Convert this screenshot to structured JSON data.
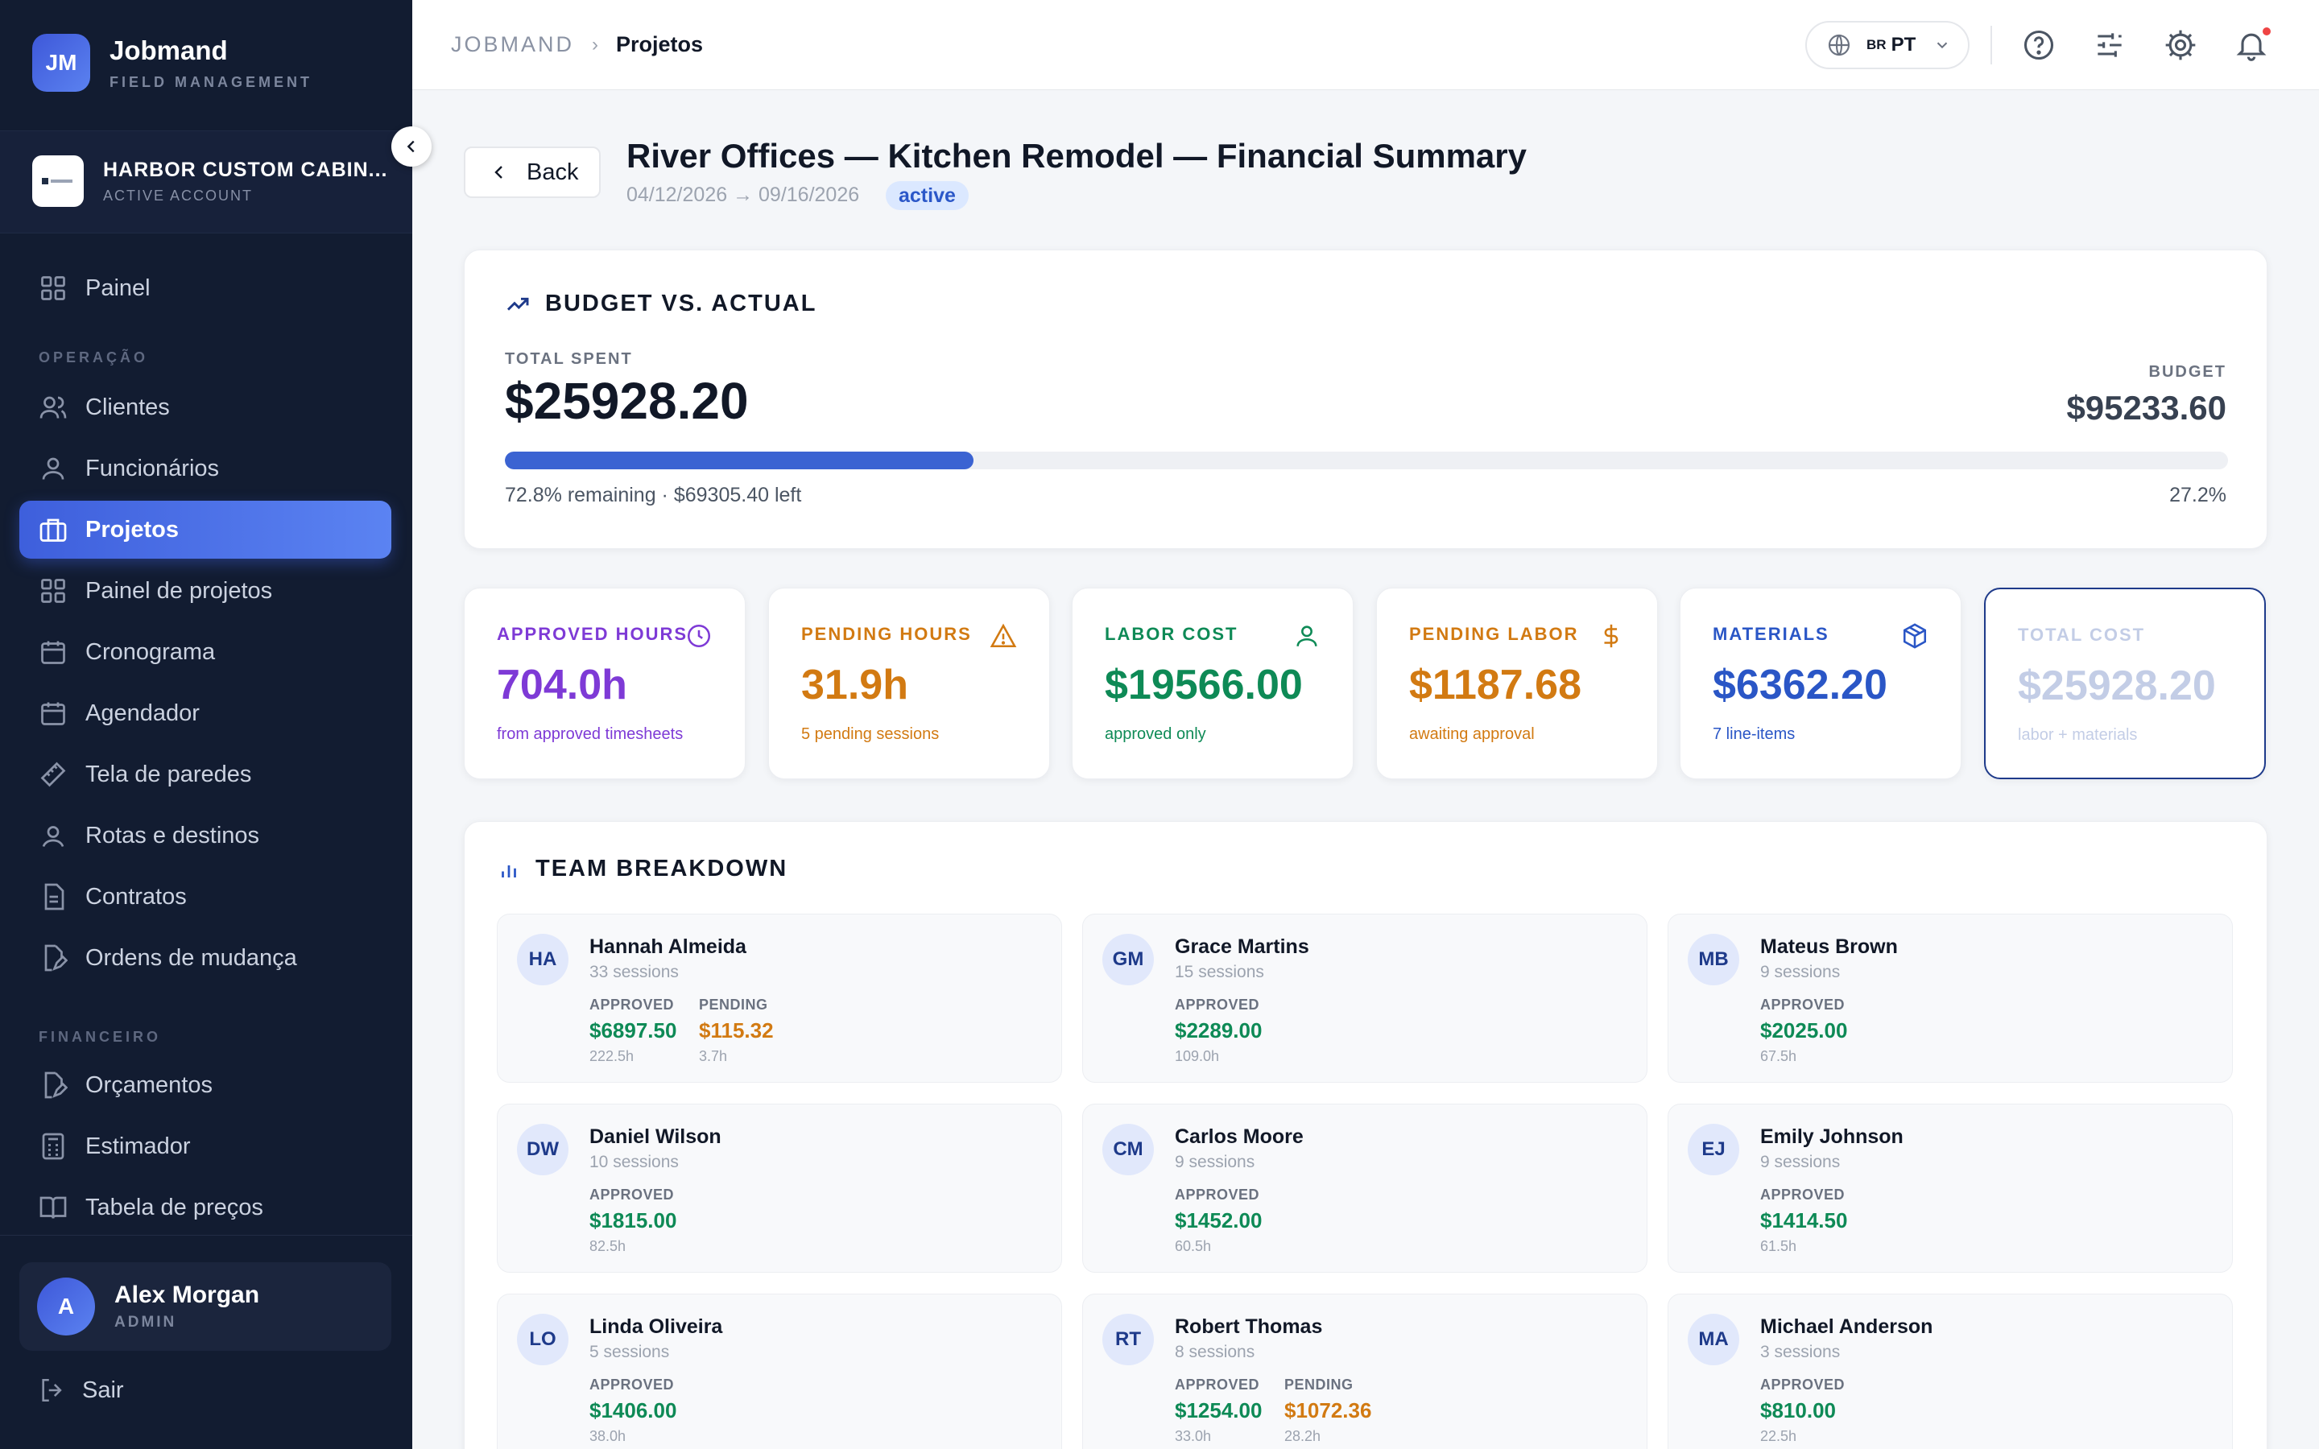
{
  "app": {
    "logo_initials": "JM",
    "name": "Jobmand",
    "subtitle": "FIELD MANAGEMENT"
  },
  "account": {
    "name": "HARBOR CUSTOM CABIN...",
    "status": "ACTIVE ACCOUNT"
  },
  "nav": {
    "top": [
      {
        "label": "Painel",
        "icon": "grid-icon"
      }
    ],
    "operacao_label": "OPERAÇÃO",
    "operacao": [
      {
        "label": "Clientes",
        "icon": "users-icon"
      },
      {
        "label": "Funcionários",
        "icon": "user-icon"
      },
      {
        "label": "Projetos",
        "icon": "briefcase-icon",
        "active": true
      },
      {
        "label": "Painel de projetos",
        "icon": "grid-icon"
      },
      {
        "label": "Cronograma",
        "icon": "calendar-icon"
      },
      {
        "label": "Agendador",
        "icon": "calendar-icon"
      },
      {
        "label": "Tela de paredes",
        "icon": "ruler-icon"
      },
      {
        "label": "Rotas e destinos",
        "icon": "map-pin-icon"
      },
      {
        "label": "Contratos",
        "icon": "file-icon"
      },
      {
        "label": "Ordens de mudança",
        "icon": "file-edit-icon"
      }
    ],
    "financeiro_label": "FINANCEIRO",
    "financeiro": [
      {
        "label": "Orçamentos",
        "icon": "file-edit-icon"
      },
      {
        "label": "Estimador",
        "icon": "calculator-icon"
      },
      {
        "label": "Tabela de preços",
        "icon": "book-icon"
      }
    ]
  },
  "user": {
    "initial": "A",
    "name": "Alex Morgan",
    "role": "ADMIN"
  },
  "logout_label": "Sair",
  "breadcrumb": {
    "root": "JOBMAND",
    "current": "Projetos"
  },
  "language": {
    "flag": "BR",
    "code": "PT"
  },
  "header": {
    "back_label": "Back",
    "title": "River Offices — Kitchen Remodel — Financial Summary",
    "dates": "04/12/2026 → 09/16/2026",
    "status": "active"
  },
  "budget": {
    "title": "BUDGET VS. ACTUAL",
    "total_spent_label": "TOTAL SPENT",
    "total_spent": "$25928.20",
    "budget_label": "BUDGET",
    "budget": "$95233.60",
    "progress_fraction": 0.272,
    "remaining_text": "72.8% remaining · $69305.40 left",
    "percent_used": "27.2%"
  },
  "stats": [
    {
      "label": "APPROVED HOURS",
      "value": "704.0h",
      "sub": "from approved timesheets",
      "icon": "clock-icon",
      "color": "#7e3ad6"
    },
    {
      "label": "PENDING HOURS",
      "value": "31.9h",
      "sub": "5 pending sessions",
      "icon": "warning-icon",
      "color": "#d27a12"
    },
    {
      "label": "LABOR COST",
      "value": "$19566.00",
      "sub": "approved only",
      "icon": "user-icon",
      "color": "#0e8a56"
    },
    {
      "label": "PENDING LABOR",
      "value": "$1187.68",
      "sub": "awaiting approval",
      "icon": "dollar-icon",
      "color": "#d27a12"
    },
    {
      "label": "MATERIALS",
      "value": "$6362.20",
      "sub": "7 line-items",
      "icon": "package-icon",
      "color": "#2a56c6"
    },
    {
      "label": "TOTAL COST",
      "value": "$25928.20",
      "sub": "labor + materials",
      "icon": "",
      "color": "#c3cde6"
    }
  ],
  "team": {
    "title": "TEAM BREAKDOWN",
    "approved_label": "APPROVED",
    "pending_label": "PENDING",
    "members": [
      {
        "initials": "HA",
        "name": "Hannah Almeida",
        "sessions": "33 sessions",
        "approved": "$6897.50",
        "approved_hours": "222.5h",
        "pending": "$115.32",
        "pending_hours": "3.7h"
      },
      {
        "initials": "GM",
        "name": "Grace Martins",
        "sessions": "15 sessions",
        "approved": "$2289.00",
        "approved_hours": "109.0h"
      },
      {
        "initials": "MB",
        "name": "Mateus Brown",
        "sessions": "9 sessions",
        "approved": "$2025.00",
        "approved_hours": "67.5h"
      },
      {
        "initials": "DW",
        "name": "Daniel Wilson",
        "sessions": "10 sessions",
        "approved": "$1815.00",
        "approved_hours": "82.5h"
      },
      {
        "initials": "CM",
        "name": "Carlos Moore",
        "sessions": "9 sessions",
        "approved": "$1452.00",
        "approved_hours": "60.5h"
      },
      {
        "initials": "EJ",
        "name": "Emily Johnson",
        "sessions": "9 sessions",
        "approved": "$1414.50",
        "approved_hours": "61.5h"
      },
      {
        "initials": "LO",
        "name": "Linda Oliveira",
        "sessions": "5 sessions",
        "approved": "$1406.00",
        "approved_hours": "38.0h"
      },
      {
        "initials": "RT",
        "name": "Robert Thomas",
        "sessions": "8 sessions",
        "approved": "$1254.00",
        "approved_hours": "33.0h",
        "pending": "$1072.36",
        "pending_hours": "28.2h"
      },
      {
        "initials": "MA",
        "name": "Michael Anderson",
        "sessions": "3 sessions",
        "approved": "$810.00",
        "approved_hours": "22.5h"
      }
    ]
  },
  "colors": {
    "approved": "#0e8a56",
    "pending": "#d27a12",
    "accent": "#3e5fdc",
    "sidebar": "#121c31"
  }
}
